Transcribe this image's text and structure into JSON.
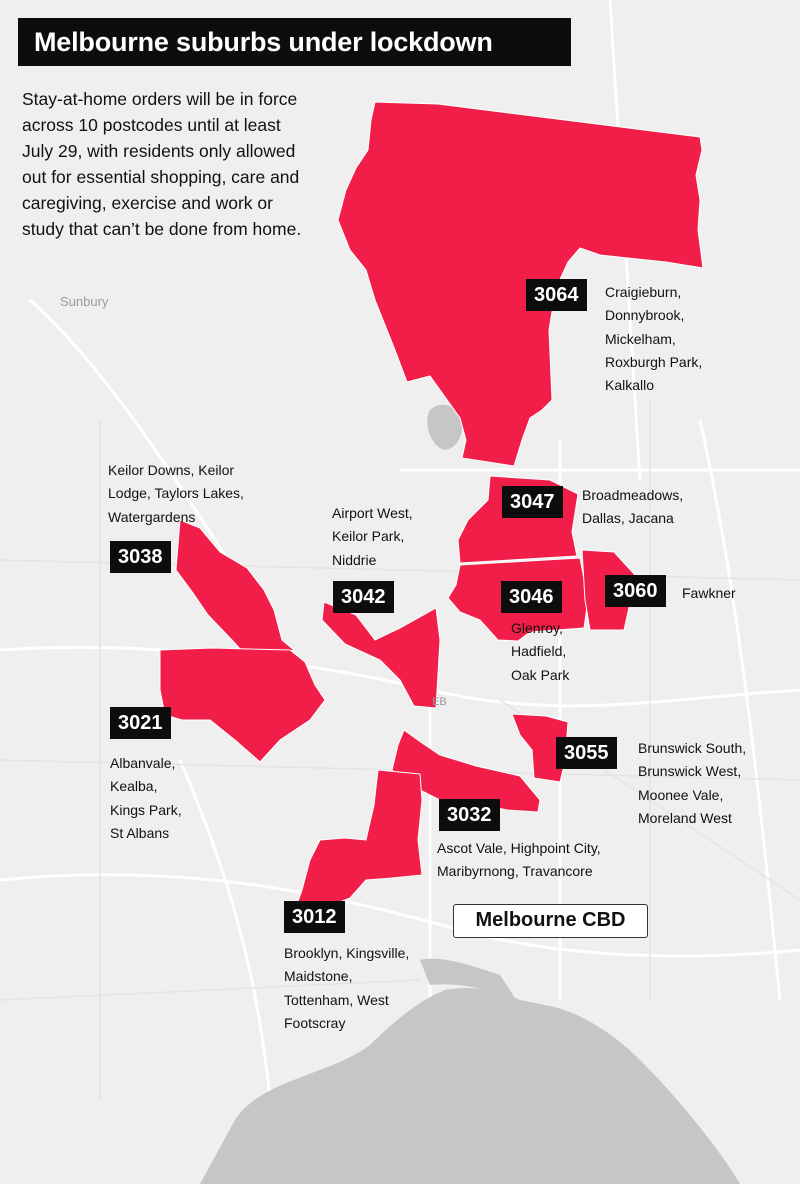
{
  "header": {
    "title": "Melbourne suburbs under lockdown",
    "intro": "Stay-at-home orders will be in force across 10 postcodes until at least July 29, with residents only allowed out for essential shopping, care and caregiving, exercise and work or study that can’t be done from home."
  },
  "map": {
    "town_label": "Sunbury",
    "faint_label": "EB",
    "cbd_label": "Melbourne CBD",
    "colors": {
      "land": "#efefef",
      "water": "#c6c6c6",
      "lockdown": "#f01e48",
      "roads": "#ffffff"
    }
  },
  "zones": [
    {
      "postcode": "3064",
      "suburbs": [
        "Craigieburn,",
        "Donnybrook,",
        "Mickelham,",
        "Roxburgh Park,",
        "Kalkallo"
      ]
    },
    {
      "postcode": "3047",
      "suburbs": [
        "Broadmeadows,",
        "Dallas, Jacana"
      ]
    },
    {
      "postcode": "3060",
      "suburbs": [
        "Fawkner"
      ]
    },
    {
      "postcode": "3046",
      "suburbs": [
        "Glenroy,",
        "Hadfield,",
        "Oak Park"
      ]
    },
    {
      "postcode": "3038",
      "suburbs": [
        "Keilor Downs, Keilor",
        "Lodge, Taylors Lakes,",
        "Watergardens"
      ]
    },
    {
      "postcode": "3042",
      "suburbs": [
        "Airport West,",
        "Keilor Park,",
        "Niddrie"
      ]
    },
    {
      "postcode": "3021",
      "suburbs": [
        "Albanvale,",
        "Kealba,",
        "Kings Park,",
        "St Albans"
      ]
    },
    {
      "postcode": "3055",
      "suburbs": [
        "Brunswick South,",
        "Brunswick West,",
        "Moonee Vale,",
        "Moreland West"
      ]
    },
    {
      "postcode": "3032",
      "suburbs": [
        "Ascot Vale, Highpoint City,",
        "Maribyrnong, Travancore"
      ]
    },
    {
      "postcode": "3012",
      "suburbs": [
        "Brooklyn, Kingsville,",
        "Maidstone,",
        "Tottenham, West",
        "Footscray"
      ]
    }
  ]
}
